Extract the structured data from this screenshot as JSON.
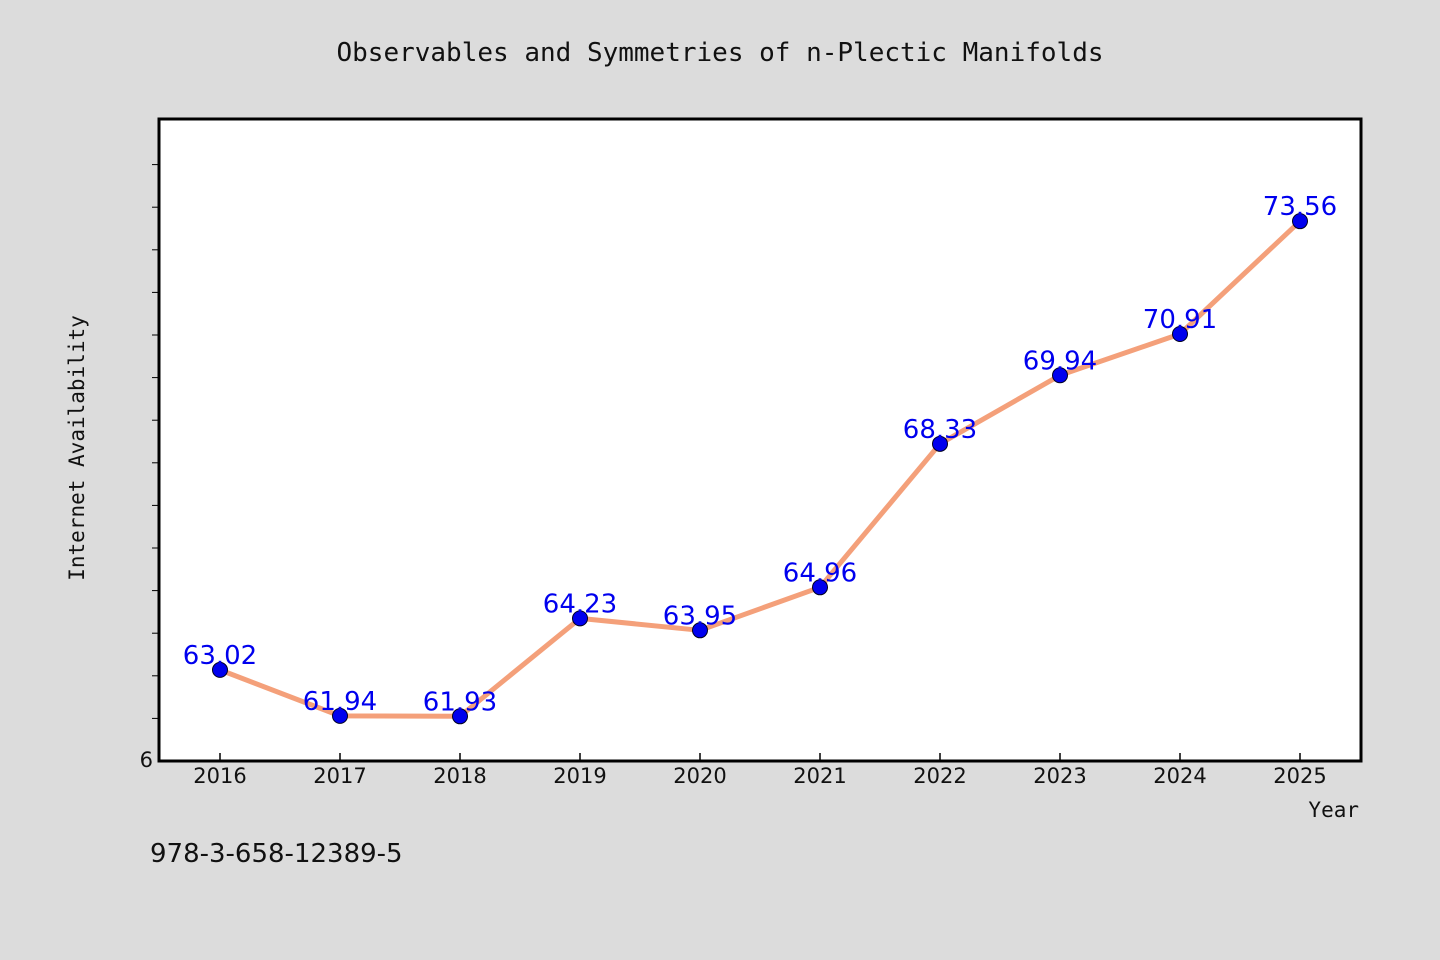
{
  "colors": {
    "background": "#dcdcdc",
    "plot_background": "#ffffff",
    "line": "#f4a07a",
    "marker": "#0000ee",
    "data_label": "#0000ee"
  },
  "footnote": "978-3-658-12389-5",
  "chart_data": {
    "type": "line",
    "title": "Observables and Symmetries of n-Plectic Manifolds",
    "xlabel": "Year",
    "ylabel": "Internet Availability",
    "categories": [
      "2016",
      "2017",
      "2018",
      "2019",
      "2020",
      "2021",
      "2022",
      "2023",
      "2024",
      "2025"
    ],
    "values": [
      63.02,
      61.94,
      61.93,
      64.23,
      63.95,
      64.96,
      68.33,
      69.94,
      70.91,
      73.56
    ],
    "data_labels": [
      "63.02",
      "61.94",
      "61.93",
      "64.23",
      "63.95",
      "64.96",
      "68.33",
      "69.94",
      "70.91",
      "73.56"
    ],
    "ylim": [
      60.88,
      75.96
    ],
    "y_tick_label": "6",
    "grid": false,
    "legend": "none"
  }
}
